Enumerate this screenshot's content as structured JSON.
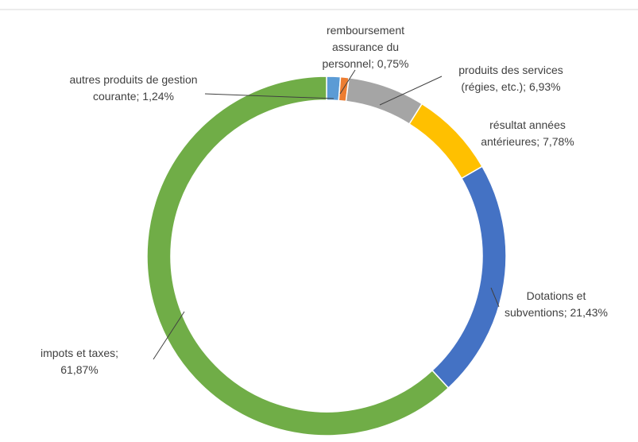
{
  "chart_data": {
    "type": "donut",
    "categories": [
      "autres produits de gestion courante;",
      "remboursement assurance du personnel;",
      "produits des services (régies, etc.);",
      "résultat années antérieures;",
      "Dotations et subventions;",
      "impots et taxes;"
    ],
    "values": [
      1.24,
      0.75,
      6.93,
      7.78,
      21.43,
      61.87
    ],
    "value_labels": [
      "1,24%",
      "0,75%",
      "6,93%",
      "7,78%",
      "21,43%",
      "61,87%"
    ],
    "colors": [
      "#5b9bd5",
      "#ed7d31",
      "#a5a5a5",
      "#ffc000",
      "#4472c4",
      "#70ad47"
    ]
  }
}
